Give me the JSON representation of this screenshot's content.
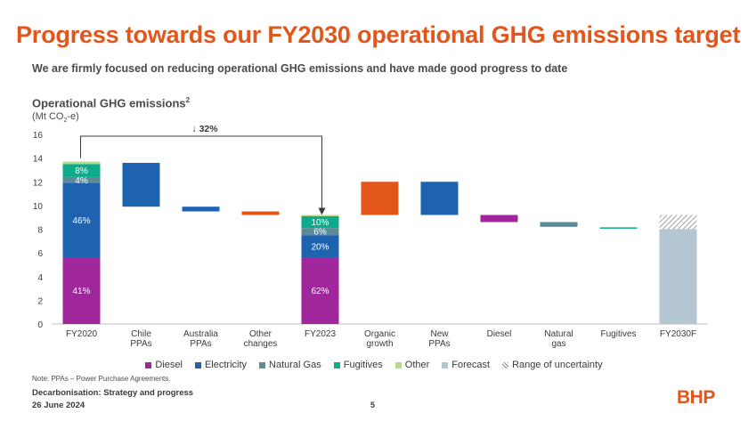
{
  "header": {
    "title": "Progress towards our FY2030 operational GHG emissions target",
    "subtitle": "We are firmly focused on reducing operational GHG emissions and have made good progress to date"
  },
  "chart_heading": {
    "title": "Operational GHG emissions",
    "title_sup": "2",
    "unit_prefix": "(Mt CO",
    "unit_sub": "2",
    "unit_suffix": "-e)"
  },
  "chart_data": {
    "type": "waterfall",
    "ylim": [
      0,
      16
    ],
    "yticks": [
      0,
      2,
      4,
      6,
      8,
      10,
      12,
      14,
      16
    ],
    "categories": [
      {
        "id": "fy2020",
        "lines": [
          "FY2020"
        ]
      },
      {
        "id": "chile-ppas",
        "lines": [
          "Chile",
          "PPAs"
        ]
      },
      {
        "id": "australia-ppas",
        "lines": [
          "Australia",
          "PPAs"
        ]
      },
      {
        "id": "other-changes",
        "lines": [
          "Other",
          "changes"
        ]
      },
      {
        "id": "fy2023",
        "lines": [
          "FY2023"
        ]
      },
      {
        "id": "organic-growth",
        "lines": [
          "Organic",
          "growth"
        ]
      },
      {
        "id": "new-ppas",
        "lines": [
          "New",
          "PPAs"
        ]
      },
      {
        "id": "diesel",
        "lines": [
          "Diesel"
        ]
      },
      {
        "id": "natural-gas",
        "lines": [
          "Natural",
          "gas"
        ]
      },
      {
        "id": "fugitives",
        "lines": [
          "Fugitives"
        ]
      },
      {
        "id": "fy2030f",
        "lines": [
          "FY2030F"
        ]
      }
    ],
    "bars": [
      {
        "cat": 0,
        "kind": "stack",
        "segments": [
          {
            "series": "Diesel",
            "from": 0,
            "to": 5.6,
            "label": "41%"
          },
          {
            "series": "Electricity",
            "from": 5.6,
            "to": 11.9,
            "label": "46%"
          },
          {
            "series": "Natural Gas",
            "from": 11.9,
            "to": 12.4,
            "label": "4%"
          },
          {
            "series": "Fugitives",
            "from": 12.4,
            "to": 13.5,
            "label": "8%"
          },
          {
            "series": "Other",
            "from": 13.5,
            "to": 13.7,
            "label": ""
          }
        ]
      },
      {
        "cat": 1,
        "kind": "float",
        "series": "Electricity",
        "from": 9.9,
        "to": 13.6
      },
      {
        "cat": 2,
        "kind": "float",
        "series": "Electricity",
        "from": 9.5,
        "to": 9.9
      },
      {
        "cat": 3,
        "kind": "float",
        "series": "Orange",
        "from": 9.2,
        "to": 9.5
      },
      {
        "cat": 4,
        "kind": "stack",
        "segments": [
          {
            "series": "Diesel",
            "from": 0,
            "to": 5.6,
            "label": "62%"
          },
          {
            "series": "Electricity",
            "from": 5.6,
            "to": 7.5,
            "label": "20%"
          },
          {
            "series": "Natural Gas",
            "from": 7.5,
            "to": 8.1,
            "label": "6%"
          },
          {
            "series": "Fugitives",
            "from": 8.1,
            "to": 9.1,
            "label": "10%"
          },
          {
            "series": "Other",
            "from": 9.1,
            "to": 9.2,
            "label": ""
          }
        ]
      },
      {
        "cat": 5,
        "kind": "float",
        "series": "Orange",
        "from": 9.2,
        "to": 12.0
      },
      {
        "cat": 6,
        "kind": "float",
        "series": "Electricity",
        "from": 9.2,
        "to": 12.0
      },
      {
        "cat": 7,
        "kind": "float",
        "series": "Diesel",
        "from": 8.6,
        "to": 9.2
      },
      {
        "cat": 8,
        "kind": "float",
        "series": "Natural Gas",
        "from": 8.2,
        "to": 8.6
      },
      {
        "cat": 9,
        "kind": "float",
        "series": "Fugitives",
        "from": 8.05,
        "to": 8.15
      },
      {
        "cat": 10,
        "kind": "stack",
        "segments": [
          {
            "series": "Forecast",
            "from": 0,
            "to": 8.0,
            "label": ""
          },
          {
            "series": "Range of uncertainty",
            "from": 8.0,
            "to": 9.2,
            "label": ""
          }
        ]
      }
    ],
    "annotation": {
      "text": "↓ 32%",
      "from_cat": 0,
      "to_cat": 4
    },
    "series": [
      {
        "name": "Diesel",
        "color": "#a0279b"
      },
      {
        "name": "Electricity",
        "color": "#1e63b0"
      },
      {
        "name": "Natural Gas",
        "color": "#5d8a98"
      },
      {
        "name": "Fugitives",
        "color": "#0daa8c"
      },
      {
        "name": "Other",
        "color": "#b5d98a"
      },
      {
        "name": "Forecast",
        "color": "#b3c6d1"
      },
      {
        "name": "Range of uncertainty",
        "color": "#9a9a9a"
      }
    ],
    "extra_colors": {
      "Orange": "#e2561b"
    }
  },
  "legend": [
    {
      "label": "Diesel",
      "color": "#a0279b",
      "hatch": false
    },
    {
      "label": "Electricity",
      "color": "#1e63b0",
      "hatch": false
    },
    {
      "label": "Natural Gas",
      "color": "#5d8a98",
      "hatch": false
    },
    {
      "label": "Fugitives",
      "color": "#0daa8c",
      "hatch": false
    },
    {
      "label": "Other",
      "color": "#b5d98a",
      "hatch": false
    },
    {
      "label": "Forecast",
      "color": "#b3c6d1",
      "hatch": false
    },
    {
      "label": "Range of uncertainty",
      "color": "#9a9a9a",
      "hatch": true
    }
  ],
  "footer": {
    "note": "Note: PPAs – Power Purchase Agreements.",
    "doc_title": "Decarbonisation: Strategy and progress",
    "date": "26 June 2024",
    "page": "5",
    "logo": "BHP"
  }
}
